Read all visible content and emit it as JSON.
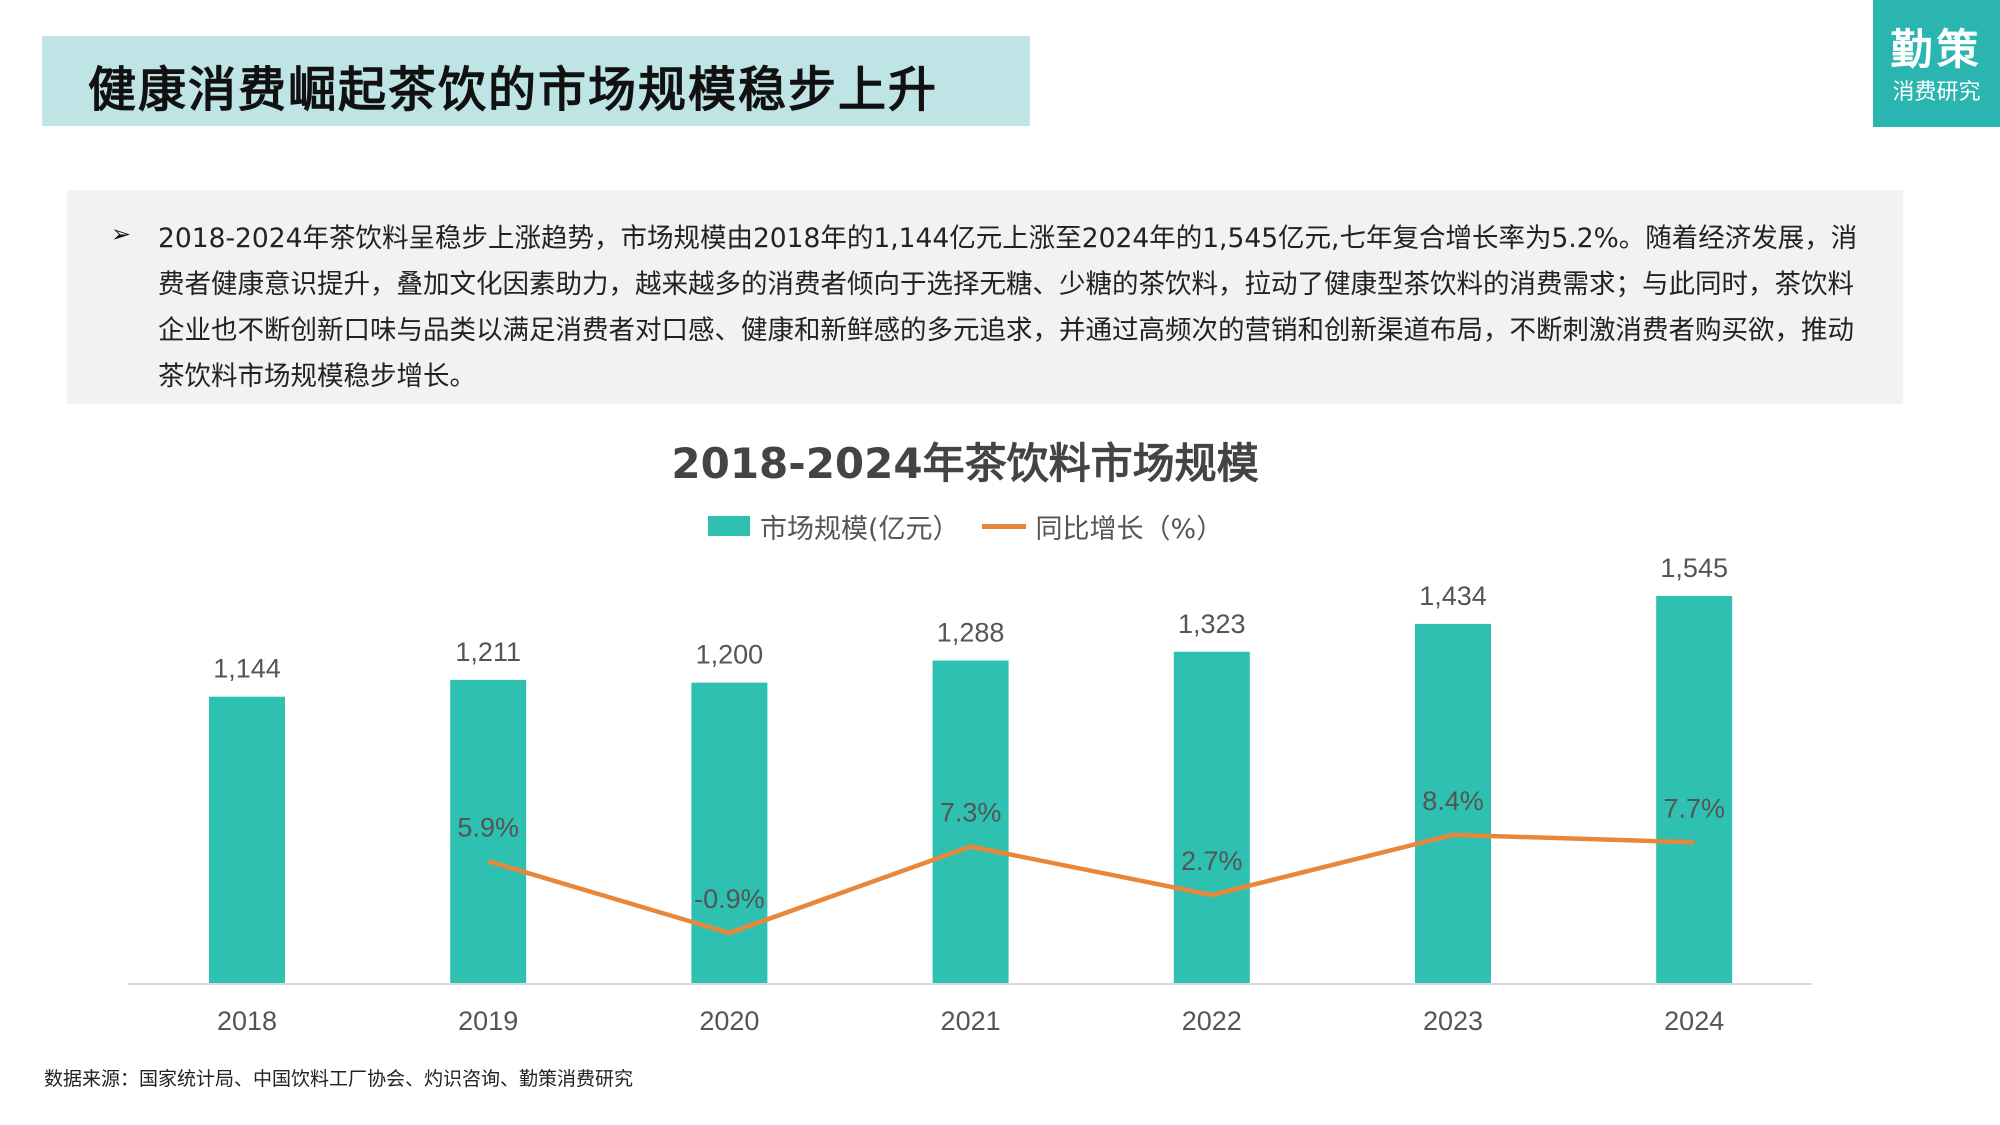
{
  "header": {
    "title": "健康消费崛起茶饮的市场规模稳步上升"
  },
  "logo": {
    "main": "勤策",
    "sub": "消费研究"
  },
  "summary": {
    "bullet": "➢",
    "text": "2018-2024年茶饮料呈稳步上涨趋势，市场规模由2018年的1,144亿元上涨至2024年的1,545亿元,七年复合增长率为5.2%。随着经济发展，消费者健康意识提升，叠加文化因素助力，越来越多的消费者倾向于选择无糖、少糖的茶饮料，拉动了健康型茶饮料的消费需求；与此同时，茶饮料企业也不断创新口味与品类以满足消费者对口感、健康和新鲜感的多元追求，并通过高频次的营销和创新渠道布局，不断刺激消费者购买欲，推动茶饮料市场规模稳步增长。"
  },
  "chart_data": {
    "type": "bar",
    "title": "2018-2024年茶饮料市场规模",
    "categories": [
      "2018",
      "2019",
      "2020",
      "2021",
      "2022",
      "2023",
      "2024"
    ],
    "series": [
      {
        "name": "市场规模(亿元）",
        "type": "bar",
        "values": [
          1144,
          1211,
          1200,
          1288,
          1323,
          1434,
          1545
        ],
        "labels": [
          "1,144",
          "1,211",
          "1,200",
          "1,288",
          "1,323",
          "1,434",
          "1,545"
        ],
        "color": "#2ec0b0"
      },
      {
        "name": "同比增长（%）",
        "type": "line",
        "values": [
          null,
          5.9,
          -0.9,
          7.3,
          2.7,
          8.4,
          7.7
        ],
        "labels": [
          "",
          "5.9%",
          "-0.9%",
          "7.3%",
          "2.7%",
          "8.4%",
          "7.7%"
        ],
        "color": "#e8873a"
      }
    ],
    "legend_position": "top-center",
    "grid": false
  },
  "footer": {
    "source": "数据来源：国家统计局、中国饮料工厂协会、灼识咨询、勤策消费研究"
  }
}
